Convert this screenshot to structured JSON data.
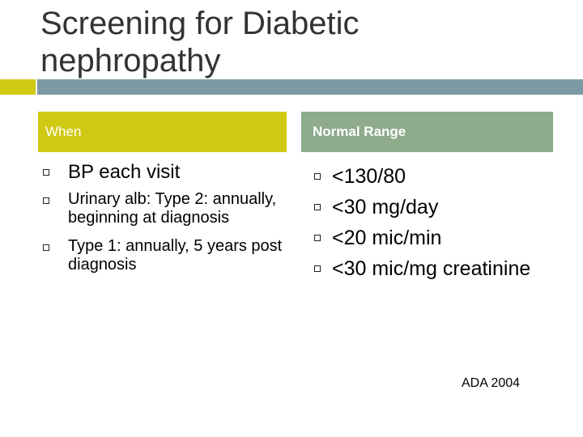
{
  "slide": {
    "title_line1": "Screening for Diabetic",
    "title_line2": "nephropathy",
    "accent_color": "#cfc914",
    "rule_color": "#7d9aa4",
    "range_header_color": "#8eab8c"
  },
  "columns": {
    "when": {
      "header": "When",
      "items": [
        "BP each visit",
        "Urinary alb: Type 2: annually, beginning at diagnosis",
        "Type 1: annually, 5 years post diagnosis"
      ]
    },
    "normal_range": {
      "header": "Normal Range",
      "items": [
        "<130/80",
        "<30 mg/day",
        "<20 mic/min",
        "<30 mic/mg creatinine"
      ]
    }
  },
  "citation": "ADA 2004",
  "icons": {
    "bullet": "hollow-square-bullet-icon"
  }
}
